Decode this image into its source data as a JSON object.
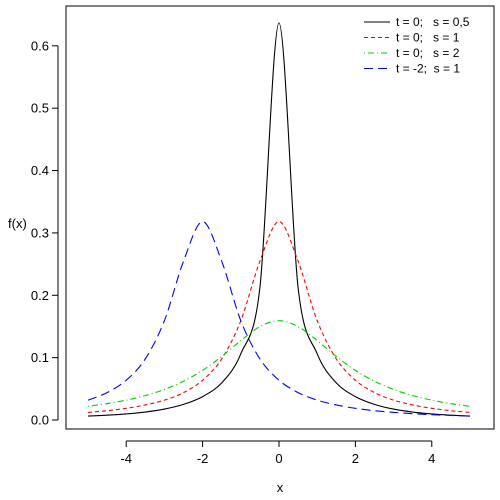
{
  "chart_data": {
    "type": "line",
    "xlabel": "x",
    "ylabel": "f(x)",
    "xlim": [
      -5,
      5
    ],
    "ylim": [
      0,
      0.65
    ],
    "xticks": [
      -4,
      -2,
      0,
      2,
      4
    ],
    "yticks": [
      0.0,
      0.1,
      0.2,
      0.3,
      0.4,
      0.5,
      0.6
    ],
    "xtick_labels": [
      "-4",
      "-2",
      "0",
      "2",
      "4"
    ],
    "ytick_labels": [
      "0.0",
      "0.1",
      "0.2",
      "0.3",
      "0.4",
      "0.5",
      "0.6"
    ],
    "grid": false,
    "legend_position": "top-right",
    "x": [
      -5,
      -4.5,
      -4,
      -3.5,
      -3,
      -2.5,
      -2,
      -1.5,
      -1,
      -0.5,
      0,
      0.5,
      1,
      1.5,
      2,
      2.5,
      3,
      3.5,
      4,
      4.5,
      5
    ],
    "series": [
      {
        "name": "t = 0;   s = 0,5",
        "color": "#000000",
        "dash": "solid",
        "values": [
          0.0063,
          0.0078,
          0.0098,
          0.0128,
          0.0175,
          0.025,
          0.0375,
          0.0595,
          0.1061,
          0.2122,
          0.6366,
          0.2122,
          0.1061,
          0.0595,
          0.0375,
          0.025,
          0.0175,
          0.0128,
          0.0098,
          0.0078,
          0.0063
        ]
      },
      {
        "name": "t = 0;   s = 1",
        "color": "#ff0000",
        "dash": "dashed",
        "values": [
          0.0122,
          0.0149,
          0.0187,
          0.0242,
          0.0318,
          0.0439,
          0.0637,
          0.0979,
          0.1592,
          0.2546,
          0.3183,
          0.2546,
          0.1592,
          0.0979,
          0.0637,
          0.0439,
          0.0318,
          0.0242,
          0.0187,
          0.0149,
          0.0122
        ]
      },
      {
        "name": "t = 0;   s = 2",
        "color": "#00cd00",
        "dash": "dotdash",
        "values": [
          0.022,
          0.0262,
          0.0318,
          0.0391,
          0.049,
          0.0621,
          0.0796,
          0.1019,
          0.1273,
          0.1498,
          0.1592,
          0.1498,
          0.1273,
          0.1019,
          0.0796,
          0.0621,
          0.049,
          0.0391,
          0.0318,
          0.0262,
          0.022
        ]
      },
      {
        "name": "t = -2;  s = 1",
        "color": "#0000ff",
        "dash": "longdash",
        "values": [
          0.0318,
          0.0439,
          0.0637,
          0.0979,
          0.1592,
          0.2546,
          0.3183,
          0.2546,
          0.1592,
          0.0979,
          0.0637,
          0.0439,
          0.0318,
          0.0242,
          0.0187,
          0.0149,
          0.0122,
          0.0101,
          0.0085,
          0.0073,
          0.0063
        ]
      }
    ]
  }
}
